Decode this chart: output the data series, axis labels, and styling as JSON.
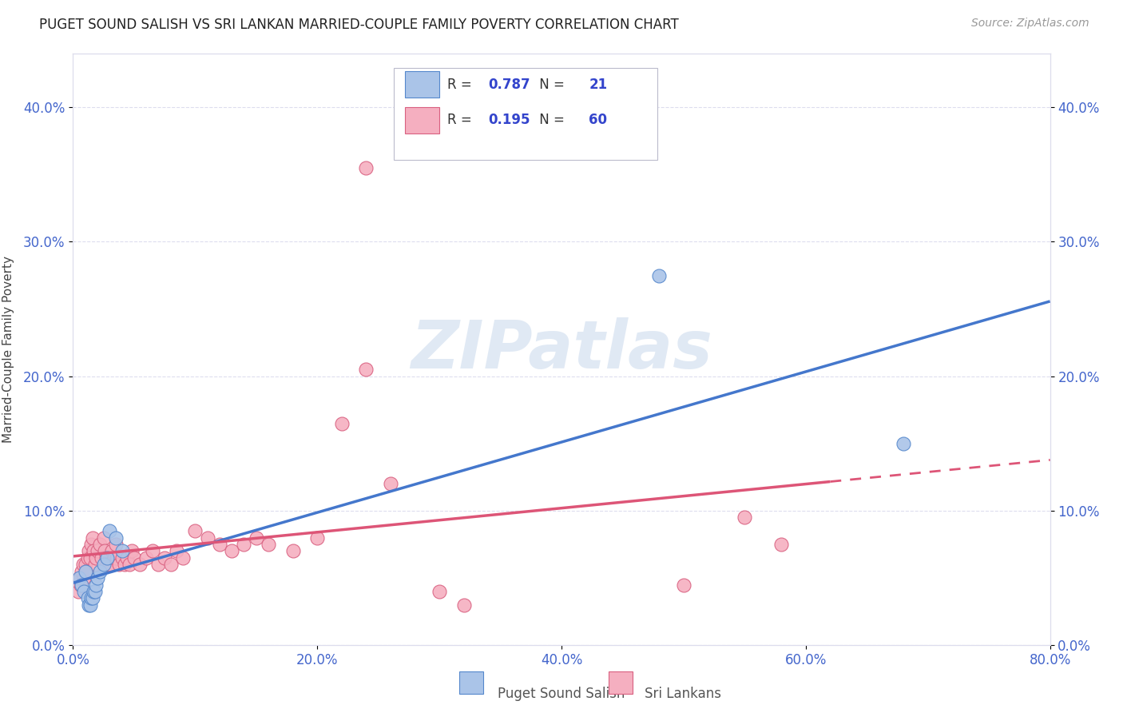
{
  "title": "PUGET SOUND SALISH VS SRI LANKAN MARRIED-COUPLE FAMILY POVERTY CORRELATION CHART",
  "source": "Source: ZipAtlas.com",
  "ylabel": "Married-Couple Family Poverty",
  "xlim": [
    0,
    0.8
  ],
  "ylim": [
    0,
    0.44
  ],
  "xticks": [
    0.0,
    0.2,
    0.4,
    0.6,
    0.8
  ],
  "yticks": [
    0.0,
    0.1,
    0.2,
    0.3,
    0.4
  ],
  "watermark": "ZIPatlas",
  "legend_labels": [
    "Puget Sound Salish",
    "Sri Lankans"
  ],
  "blue_R": "0.787",
  "blue_N": "21",
  "pink_R": "0.195",
  "pink_N": "60",
  "blue_fill": "#aac4e8",
  "pink_fill": "#f5afc0",
  "blue_edge": "#5588cc",
  "pink_edge": "#d96080",
  "blue_line": "#4477cc",
  "pink_line": "#dd5577",
  "blue_points": [
    [
      0.005,
      0.05
    ],
    [
      0.007,
      0.045
    ],
    [
      0.009,
      0.04
    ],
    [
      0.01,
      0.055
    ],
    [
      0.012,
      0.035
    ],
    [
      0.013,
      0.03
    ],
    [
      0.014,
      0.03
    ],
    [
      0.015,
      0.035
    ],
    [
      0.016,
      0.035
    ],
    [
      0.017,
      0.04
    ],
    [
      0.018,
      0.04
    ],
    [
      0.019,
      0.045
    ],
    [
      0.02,
      0.05
    ],
    [
      0.022,
      0.055
    ],
    [
      0.025,
      0.06
    ],
    [
      0.028,
      0.065
    ],
    [
      0.03,
      0.085
    ],
    [
      0.035,
      0.08
    ],
    [
      0.04,
      0.07
    ],
    [
      0.48,
      0.275
    ],
    [
      0.68,
      0.15
    ]
  ],
  "pink_points": [
    [
      0.004,
      0.04
    ],
    [
      0.005,
      0.05
    ],
    [
      0.006,
      0.045
    ],
    [
      0.007,
      0.055
    ],
    [
      0.008,
      0.06
    ],
    [
      0.009,
      0.05
    ],
    [
      0.01,
      0.06
    ],
    [
      0.011,
      0.055
    ],
    [
      0.012,
      0.065
    ],
    [
      0.013,
      0.07
    ],
    [
      0.014,
      0.065
    ],
    [
      0.015,
      0.075
    ],
    [
      0.016,
      0.08
    ],
    [
      0.017,
      0.07
    ],
    [
      0.018,
      0.06
    ],
    [
      0.019,
      0.065
    ],
    [
      0.02,
      0.07
    ],
    [
      0.022,
      0.075
    ],
    [
      0.023,
      0.065
    ],
    [
      0.025,
      0.08
    ],
    [
      0.026,
      0.07
    ],
    [
      0.027,
      0.065
    ],
    [
      0.028,
      0.06
    ],
    [
      0.03,
      0.06
    ],
    [
      0.032,
      0.07
    ],
    [
      0.034,
      0.065
    ],
    [
      0.035,
      0.075
    ],
    [
      0.036,
      0.065
    ],
    [
      0.038,
      0.06
    ],
    [
      0.04,
      0.065
    ],
    [
      0.042,
      0.06
    ],
    [
      0.044,
      0.065
    ],
    [
      0.046,
      0.06
    ],
    [
      0.048,
      0.07
    ],
    [
      0.05,
      0.065
    ],
    [
      0.055,
      0.06
    ],
    [
      0.06,
      0.065
    ],
    [
      0.065,
      0.07
    ],
    [
      0.07,
      0.06
    ],
    [
      0.075,
      0.065
    ],
    [
      0.08,
      0.06
    ],
    [
      0.085,
      0.07
    ],
    [
      0.09,
      0.065
    ],
    [
      0.1,
      0.085
    ],
    [
      0.11,
      0.08
    ],
    [
      0.12,
      0.075
    ],
    [
      0.13,
      0.07
    ],
    [
      0.14,
      0.075
    ],
    [
      0.15,
      0.08
    ],
    [
      0.16,
      0.075
    ],
    [
      0.18,
      0.07
    ],
    [
      0.2,
      0.08
    ],
    [
      0.22,
      0.165
    ],
    [
      0.26,
      0.12
    ],
    [
      0.3,
      0.04
    ],
    [
      0.32,
      0.03
    ],
    [
      0.5,
      0.045
    ],
    [
      0.55,
      0.095
    ],
    [
      0.58,
      0.075
    ],
    [
      0.24,
      0.205
    ]
  ],
  "pink_outlier": [
    0.24,
    0.355
  ],
  "pink_line_solid_end": 0.62,
  "bg_color": "#ffffff",
  "grid_color": "#ddddee",
  "tick_color": "#4466cc",
  "title_color": "#222222",
  "source_color": "#999999"
}
